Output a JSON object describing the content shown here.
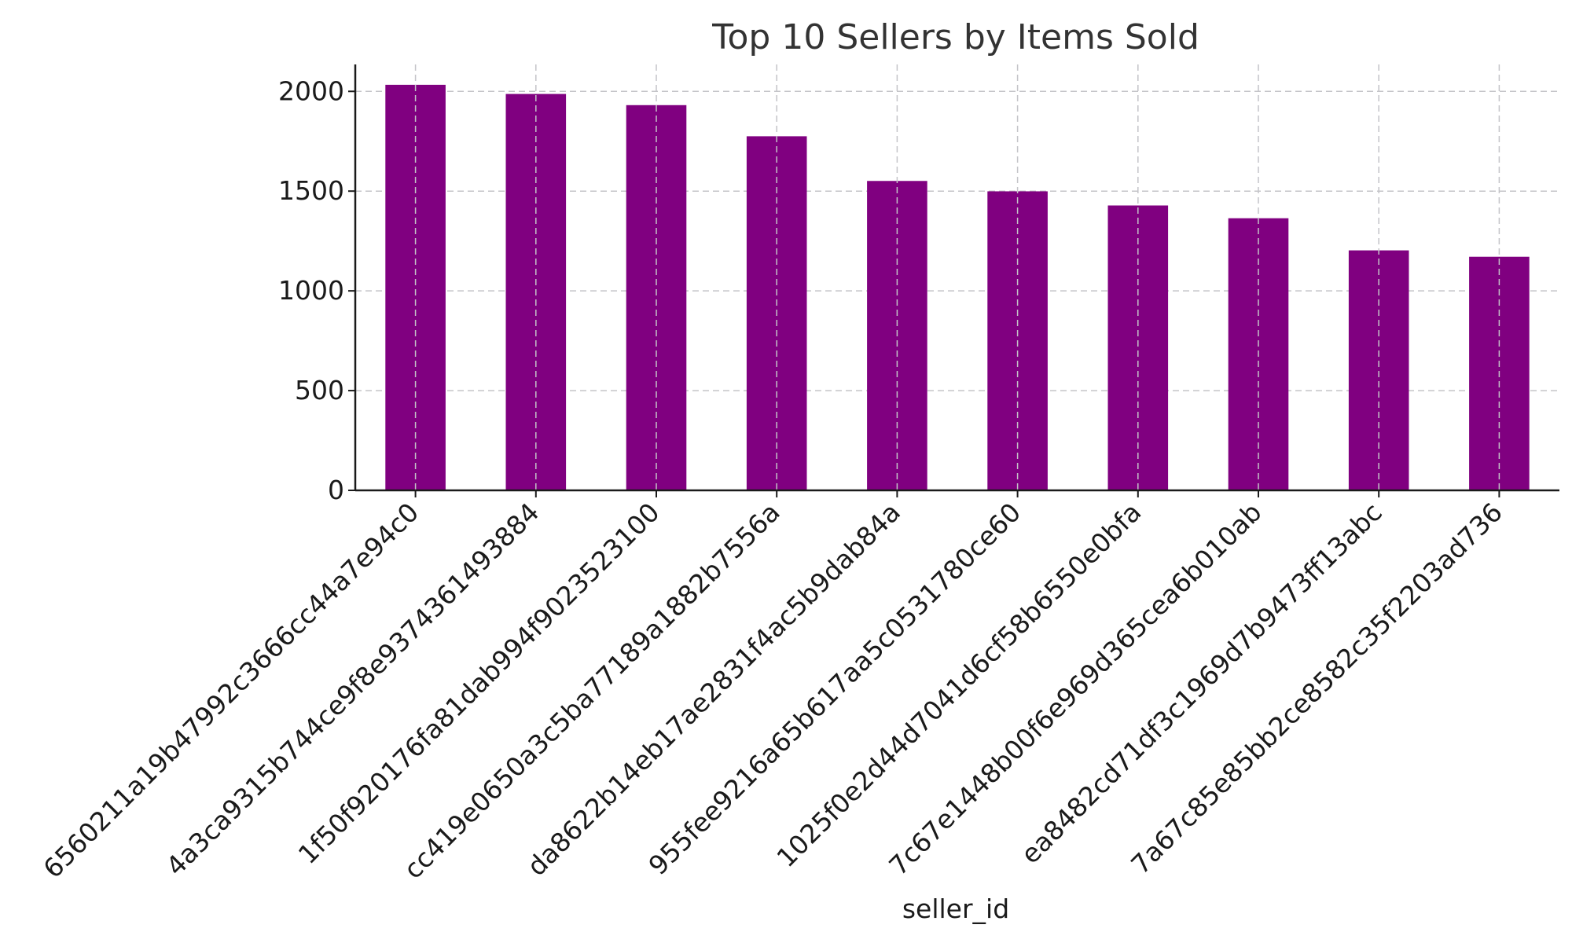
{
  "chart_data": {
    "type": "bar",
    "title": "Top 10 Sellers by Items Sold",
    "xlabel": "seller_id",
    "ylabel": "",
    "categories": [
      "6560211a19b47992c3666cc44a7e94c0",
      "4a3ca9315b744ce9f8e9374361493884",
      "1f50f920176fa81dab994f9023523100",
      "cc419e0650a3c5ba77189a1882b7556a",
      "da8622b14eb17ae2831f4ac5b9dab84a",
      "955fee9216a65b617aa5c0531780ce60",
      "1025f0e2d44d7041d6cf58b6550e0bfa",
      "7c67e1448b00f6e969d365cea6b010ab",
      "ea8482cd71df3c1969d7b9473ff13abc",
      "7a67c85e85bb2ce8582c35f2203ad736"
    ],
    "values": [
      2033,
      1987,
      1931,
      1775,
      1551,
      1499,
      1428,
      1364,
      1203,
      1171
    ],
    "ylim": [
      0,
      2135
    ],
    "yticks": [
      0,
      500,
      1000,
      1500,
      2000
    ],
    "grid": true,
    "bar_color": "#800080"
  }
}
